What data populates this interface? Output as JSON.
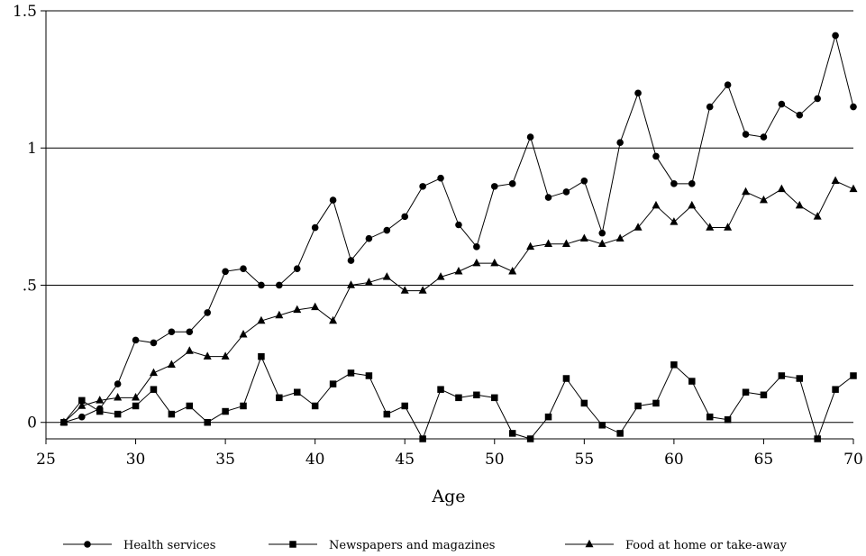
{
  "chart_data": {
    "type": "line",
    "title": "",
    "xlabel": "Age",
    "ylabel": "",
    "xlim": [
      25,
      70
    ],
    "ylim": [
      -0.06,
      1.5
    ],
    "x_ticks": [
      25,
      30,
      35,
      40,
      45,
      50,
      55,
      60,
      65,
      70
    ],
    "x_tick_labels": [
      "25",
      "30",
      "35",
      "40",
      "45",
      "50",
      "55",
      "60",
      "65",
      "70"
    ],
    "y_ticks": [
      0,
      0.5,
      1,
      1.5
    ],
    "y_tick_labels": [
      "0",
      ".5",
      "1",
      "1.5"
    ],
    "grid": "horizontal",
    "legend_position": "bottom",
    "x": [
      26,
      27,
      28,
      29,
      30,
      31,
      32,
      33,
      34,
      35,
      36,
      37,
      38,
      39,
      40,
      41,
      42,
      43,
      44,
      45,
      46,
      47,
      48,
      49,
      50,
      51,
      52,
      53,
      54,
      55,
      56,
      57,
      58,
      59,
      60,
      61,
      62,
      63,
      64,
      65,
      66,
      67,
      68,
      69,
      70
    ],
    "series": [
      {
        "name": "Health services",
        "marker": "circle",
        "values": [
          0.0,
          0.02,
          0.05,
          0.14,
          0.3,
          0.29,
          0.33,
          0.33,
          0.4,
          0.55,
          0.56,
          0.5,
          0.5,
          0.56,
          0.71,
          0.81,
          0.59,
          0.67,
          0.7,
          0.75,
          0.86,
          0.89,
          0.72,
          0.64,
          0.86,
          0.87,
          1.04,
          0.82,
          0.84,
          0.88,
          0.69,
          1.02,
          1.2,
          0.97,
          0.87,
          0.87,
          1.15,
          1.23,
          1.05,
          1.04,
          1.16,
          1.12,
          1.18,
          1.41,
          1.15
        ]
      },
      {
        "name": "Newspapers and magazines",
        "marker": "square",
        "values": [
          0.0,
          0.08,
          0.04,
          0.03,
          0.06,
          0.12,
          0.03,
          0.06,
          0.0,
          0.04,
          0.06,
          0.24,
          0.09,
          0.11,
          0.06,
          0.14,
          0.18,
          0.17,
          0.03,
          0.06,
          -0.06,
          0.12,
          0.09,
          0.1,
          0.09,
          -0.04,
          -0.06,
          0.02,
          0.16,
          0.07,
          -0.01,
          -0.04,
          0.06,
          0.07,
          0.21,
          0.15,
          0.02,
          0.01,
          0.11,
          0.1,
          0.17,
          0.16,
          -0.06,
          0.12,
          0.17
        ]
      },
      {
        "name": "Food at home or take-away",
        "marker": "triangle",
        "values": [
          0.0,
          0.06,
          0.08,
          0.09,
          0.09,
          0.18,
          0.21,
          0.26,
          0.24,
          0.24,
          0.32,
          0.37,
          0.39,
          0.41,
          0.42,
          0.37,
          0.5,
          0.51,
          0.53,
          0.48,
          0.48,
          0.53,
          0.55,
          0.58,
          0.58,
          0.55,
          0.64,
          0.65,
          0.65,
          0.67,
          0.65,
          0.67,
          0.71,
          0.79,
          0.73,
          0.79,
          0.71,
          0.71,
          0.84,
          0.81,
          0.85,
          0.79,
          0.75,
          0.88,
          0.85
        ]
      }
    ]
  }
}
